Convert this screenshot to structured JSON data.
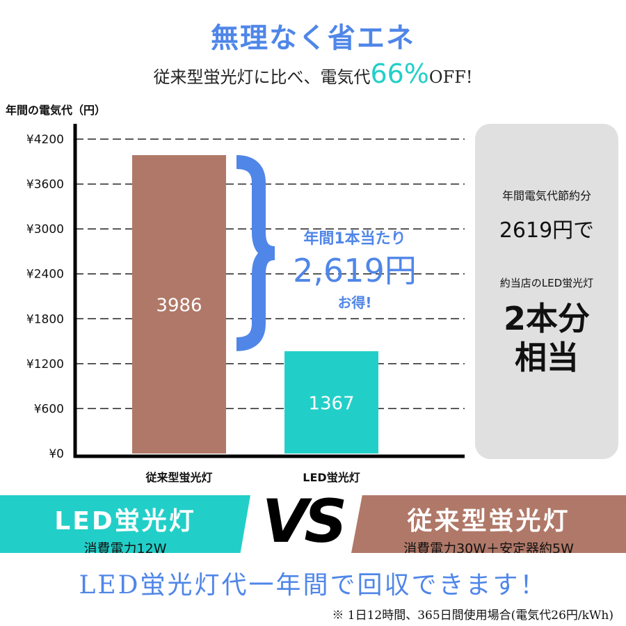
{
  "header": {
    "title": "無理なく省エネ",
    "subtitle_pre": "従来型蛍光灯に比べ、電気代",
    "subtitle_pct": "66%",
    "subtitle_post": "OFF!"
  },
  "colors": {
    "blue": "#4f86e8",
    "teal": "#22cfc8",
    "brown": "#b07868",
    "panel": "#e0e0e0"
  },
  "chart_data": {
    "type": "bar",
    "ylabel": "年間の電気代（円）",
    "categories": [
      "従来型蛍光灯",
      "LED蛍光灯"
    ],
    "values": [
      3986,
      1367
    ],
    "data_labels": [
      "3986",
      "1367"
    ],
    "bar_colors": [
      "#b07868",
      "#22cfc8"
    ],
    "ylim": [
      0,
      4200
    ],
    "yticks": [
      0,
      600,
      1200,
      1800,
      2400,
      3000,
      3600,
      4200
    ],
    "ytick_labels": [
      "¥0",
      "¥600",
      "¥1200",
      "¥1800",
      "¥2400",
      "¥3000",
      "¥3600",
      "¥4200"
    ],
    "grid": "dashed-horizontal",
    "annotation": {
      "line1": "年間1本当たり",
      "line2": "2,619円",
      "line3": "お得!"
    }
  },
  "panel": {
    "line1": "年間電気代節約分",
    "line2": "2619円で",
    "line3": "約当店のLED蛍光灯",
    "line4": "2本分",
    "line5": "相当"
  },
  "vs": {
    "left_title": "LED蛍光灯",
    "left_sub": "消費電力12W",
    "vs": "VS",
    "right_title": "従来型蛍光灯",
    "right_sub": "消費電力30W＋安定器約5W"
  },
  "footer": {
    "headline": "LED蛍光灯代一年間で回収できます！",
    "note": "※ 1日12時間、365日間使用場合(電気代26円/kWh)"
  }
}
